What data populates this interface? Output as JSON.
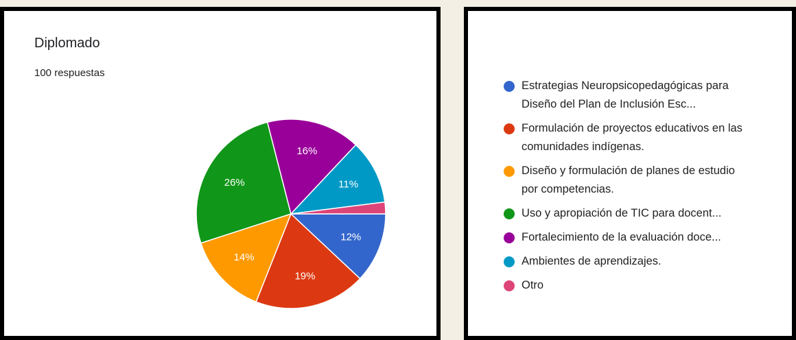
{
  "chart_data": {
    "type": "pie",
    "title": "Diplomado",
    "subtitle": "100 respuestas",
    "categories": [
      "Estrategias Neuropsicopedagógicas para Diseño del Plan de Inclusión Esc...",
      "Formulación de proyectos educativos en las comunidades indígenas.",
      "Diseño y formulación de planes de estudio por competencias.",
      "Uso y apropiación de TIC para docent...",
      "Fortalecimiento de la evaluación doce...",
      "Ambientes de aprendizajes.",
      "Otro"
    ],
    "values": [
      12,
      19,
      14,
      26,
      16,
      11,
      2
    ],
    "value_labels": [
      "12%",
      "19%",
      "14%",
      "26%",
      "16%",
      "11%",
      null
    ],
    "colors": [
      "#3366cc",
      "#dc3912",
      "#ff9900",
      "#109618",
      "#990099",
      "#0099c6",
      "#dd4477"
    ],
    "legend": "right"
  }
}
